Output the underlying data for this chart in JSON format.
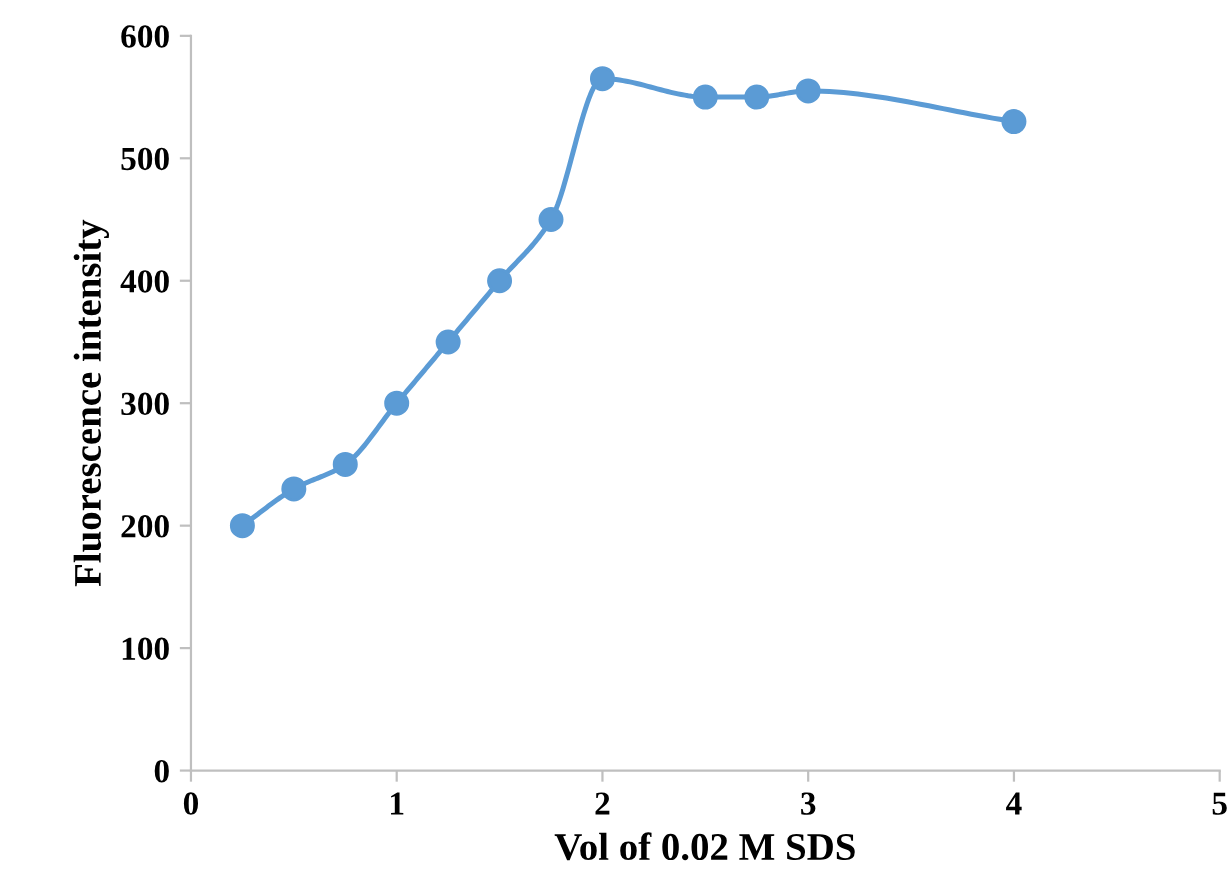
{
  "chart_data": {
    "type": "line",
    "xlabel": "Vol of 0.02 M SDS",
    "ylabel": "Fluorescence intensity",
    "series": [
      {
        "color": "#5b9bd5",
        "x": [
          0.25,
          0.5,
          0.75,
          1.0,
          1.25,
          1.5,
          1.75,
          2.0,
          2.5,
          2.75,
          3.0,
          4.0
        ],
        "values": [
          200,
          230,
          250,
          300,
          350,
          400,
          450,
          565,
          550,
          550,
          555,
          530
        ]
      }
    ],
    "xlim": [
      0,
      5
    ],
    "xticks": [
      0,
      1,
      2,
      3,
      4,
      5
    ],
    "ylim": [
      0,
      600
    ],
    "yticks": [
      0,
      100,
      200,
      300,
      400,
      500,
      600
    ],
    "grid": false,
    "legend": false,
    "marker": "circle",
    "line_style": "solid"
  }
}
